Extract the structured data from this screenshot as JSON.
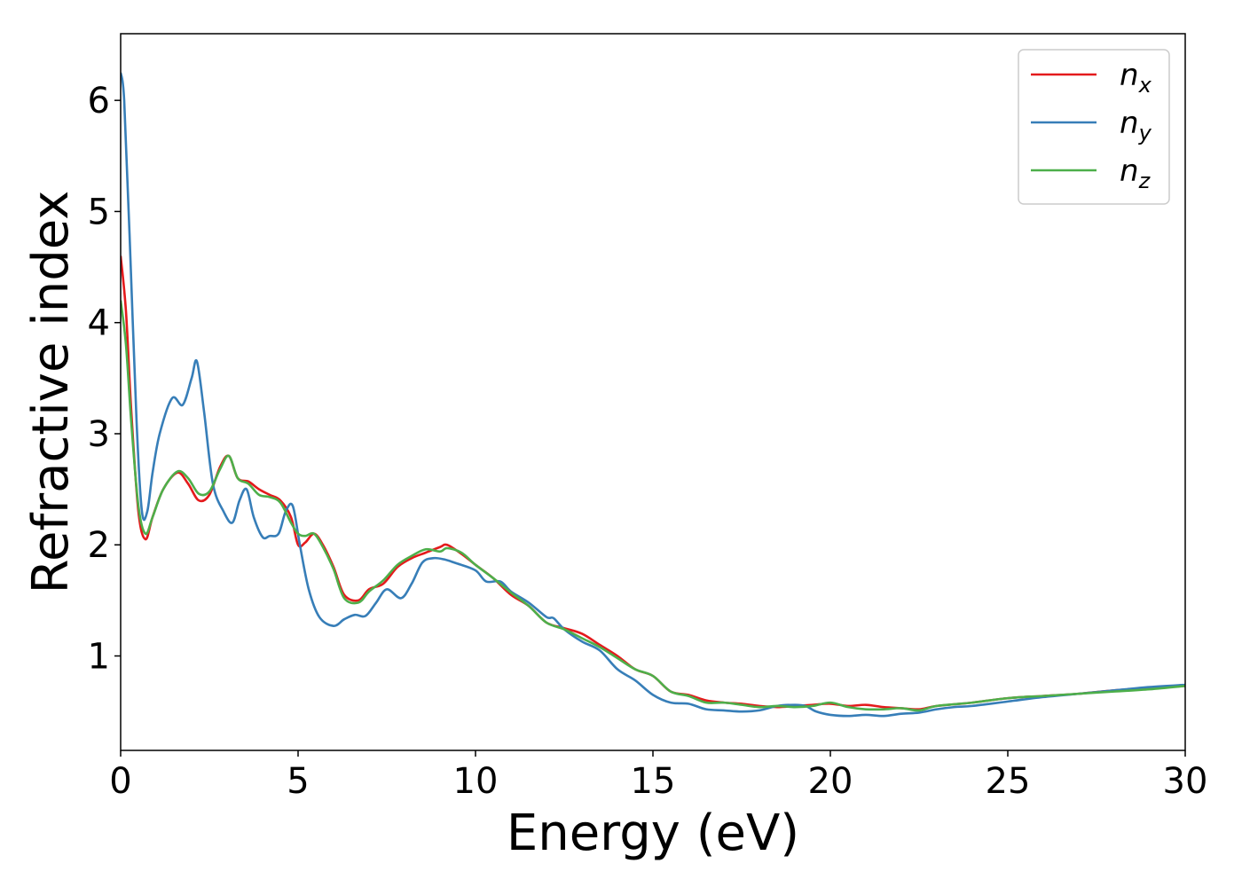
{
  "chart_data": {
    "type": "line",
    "title": "",
    "xlabel": "Energy (eV)",
    "ylabel": "Refractive index",
    "xlim": [
      0,
      30
    ],
    "ylim": [
      0.15,
      6.6
    ],
    "xticks": [
      0,
      5,
      10,
      15,
      20,
      25,
      30
    ],
    "yticks": [
      1,
      2,
      3,
      4,
      5,
      6
    ],
    "grid": false,
    "legend_position": "top-right",
    "series": [
      {
        "name": "n",
        "subscript": "x",
        "color": "#e41a1c",
        "x": [
          0,
          0.15,
          0.3,
          0.5,
          0.7,
          0.9,
          1.2,
          1.6,
          1.9,
          2.2,
          2.5,
          2.8,
          3.05,
          3.3,
          3.6,
          3.9,
          4.2,
          4.5,
          4.8,
          5.0,
          5.2,
          5.45,
          5.7,
          6.0,
          6.3,
          6.7,
          7.0,
          7.4,
          7.8,
          8.2,
          8.6,
          9.0,
          9.2,
          9.6,
          10.0,
          10.5,
          11.0,
          11.5,
          12.0,
          12.5,
          13.0,
          13.5,
          14.0,
          14.5,
          15.0,
          15.5,
          16.0,
          16.5,
          17.0,
          17.5,
          18.0,
          18.5,
          19.0,
          19.5,
          20.0,
          20.5,
          21.0,
          21.5,
          22.0,
          22.5,
          23.0,
          24.0,
          25.0,
          26.0,
          27.0,
          28.0,
          29.0,
          30.0
        ],
        "values": [
          4.6,
          4.1,
          3.2,
          2.3,
          2.05,
          2.25,
          2.5,
          2.65,
          2.55,
          2.4,
          2.45,
          2.7,
          2.8,
          2.6,
          2.57,
          2.5,
          2.45,
          2.4,
          2.25,
          2.0,
          2.02,
          2.1,
          2.0,
          1.8,
          1.55,
          1.5,
          1.6,
          1.65,
          1.8,
          1.88,
          1.93,
          1.98,
          2.0,
          1.92,
          1.82,
          1.7,
          1.55,
          1.45,
          1.3,
          1.25,
          1.2,
          1.1,
          1.0,
          0.88,
          0.82,
          0.68,
          0.65,
          0.6,
          0.58,
          0.57,
          0.55,
          0.54,
          0.55,
          0.56,
          0.57,
          0.55,
          0.56,
          0.54,
          0.53,
          0.52,
          0.55,
          0.58,
          0.62,
          0.64,
          0.66,
          0.69,
          0.71,
          0.73
        ]
      },
      {
        "name": "n",
        "subscript": "y",
        "color": "#377eb8",
        "x": [
          0,
          0.1,
          0.25,
          0.45,
          0.6,
          0.75,
          0.9,
          1.1,
          1.45,
          1.75,
          2.0,
          2.15,
          2.35,
          2.6,
          2.9,
          3.15,
          3.35,
          3.55,
          3.75,
          4.0,
          4.2,
          4.45,
          4.65,
          4.85,
          5.05,
          5.3,
          5.6,
          6.0,
          6.3,
          6.6,
          6.9,
          7.2,
          7.5,
          7.9,
          8.2,
          8.5,
          8.8,
          9.1,
          9.5,
          10.0,
          10.3,
          10.7,
          11.0,
          11.5,
          12.0,
          12.2,
          12.5,
          13.0,
          13.5,
          14.0,
          14.5,
          15.0,
          15.5,
          16.0,
          16.5,
          17.0,
          17.5,
          18.0,
          18.5,
          19.0,
          19.3,
          19.6,
          20.0,
          20.5,
          21.0,
          21.5,
          22.0,
          22.5,
          23.0,
          23.5,
          24.0,
          25.0,
          26.0,
          27.0,
          28.0,
          29.0,
          30.0
        ],
        "values": [
          6.25,
          6.0,
          4.8,
          3.1,
          2.3,
          2.3,
          2.65,
          3.0,
          3.32,
          3.26,
          3.5,
          3.65,
          3.2,
          2.55,
          2.3,
          2.2,
          2.4,
          2.5,
          2.25,
          2.07,
          2.08,
          2.1,
          2.3,
          2.35,
          2.0,
          1.6,
          1.35,
          1.27,
          1.33,
          1.37,
          1.36,
          1.48,
          1.6,
          1.52,
          1.65,
          1.84,
          1.88,
          1.87,
          1.83,
          1.77,
          1.67,
          1.67,
          1.58,
          1.48,
          1.35,
          1.34,
          1.24,
          1.13,
          1.05,
          0.88,
          0.78,
          0.65,
          0.58,
          0.57,
          0.52,
          0.51,
          0.5,
          0.51,
          0.55,
          0.56,
          0.55,
          0.5,
          0.47,
          0.46,
          0.47,
          0.46,
          0.48,
          0.49,
          0.52,
          0.54,
          0.55,
          0.59,
          0.63,
          0.66,
          0.69,
          0.72,
          0.74
        ]
      },
      {
        "name": "n",
        "subscript": "z",
        "color": "#4daf4a",
        "x": [
          0,
          0.15,
          0.3,
          0.5,
          0.7,
          0.9,
          1.2,
          1.6,
          1.9,
          2.2,
          2.5,
          2.8,
          3.05,
          3.3,
          3.6,
          3.9,
          4.2,
          4.5,
          4.8,
          5.0,
          5.2,
          5.45,
          5.7,
          6.0,
          6.3,
          6.7,
          7.0,
          7.4,
          7.8,
          8.2,
          8.6,
          9.0,
          9.2,
          9.6,
          10.0,
          10.5,
          11.0,
          11.5,
          12.0,
          12.5,
          13.0,
          13.5,
          14.0,
          14.5,
          15.0,
          15.5,
          16.0,
          16.5,
          17.0,
          17.5,
          18.0,
          18.5,
          19.0,
          19.5,
          20.0,
          20.5,
          21.0,
          21.5,
          22.0,
          22.5,
          23.0,
          24.0,
          25.0,
          26.0,
          27.0,
          28.0,
          29.0,
          30.0
        ],
        "values": [
          4.2,
          3.8,
          3.1,
          2.35,
          2.1,
          2.25,
          2.5,
          2.66,
          2.6,
          2.46,
          2.48,
          2.68,
          2.8,
          2.6,
          2.55,
          2.45,
          2.43,
          2.38,
          2.2,
          2.1,
          2.08,
          2.1,
          1.98,
          1.78,
          1.52,
          1.48,
          1.58,
          1.68,
          1.82,
          1.9,
          1.96,
          1.94,
          1.97,
          1.93,
          1.82,
          1.7,
          1.57,
          1.45,
          1.3,
          1.24,
          1.16,
          1.08,
          0.98,
          0.88,
          0.82,
          0.68,
          0.64,
          0.58,
          0.58,
          0.56,
          0.54,
          0.55,
          0.54,
          0.55,
          0.58,
          0.54,
          0.52,
          0.52,
          0.53,
          0.51,
          0.55,
          0.58,
          0.62,
          0.64,
          0.66,
          0.68,
          0.7,
          0.73
        ]
      }
    ]
  }
}
